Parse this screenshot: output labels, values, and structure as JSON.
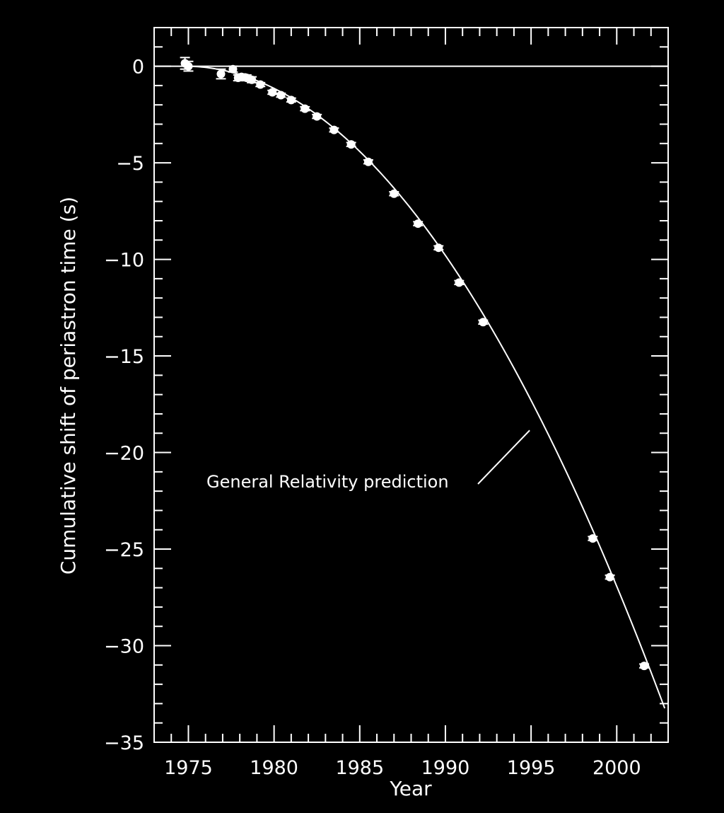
{
  "chart_data": {
    "type": "scatter",
    "title": "",
    "xlabel": "Year",
    "ylabel": "Cumulative shift of periastron time (s)",
    "xlim": [
      1973,
      2003
    ],
    "ylim": [
      -35,
      2
    ],
    "x_ticks": [
      1975,
      1980,
      1985,
      1990,
      1995,
      2000
    ],
    "x_tick_labels": [
      "1975",
      "1980",
      "1985",
      "1990",
      "1995",
      "2000"
    ],
    "y_ticks": [
      0,
      -5,
      -10,
      -15,
      -20,
      -25,
      -30,
      -35
    ],
    "y_tick_labels": [
      "0",
      "−5",
      "−10",
      "−15",
      "−20",
      "−25",
      "−30",
      "−35"
    ],
    "x_minor_step": 1,
    "y_minor_step": 1,
    "grid": false,
    "zero_line": 0,
    "background": "#000000",
    "foreground": "#ffffff",
    "series": [
      {
        "type": "scatter",
        "x": [
          1974.8,
          1975.0,
          1976.9,
          1977.6,
          1977.9,
          1978.1,
          1978.4,
          1978.7,
          1979.2,
          1979.9,
          1980.4,
          1981.0,
          1981.8,
          1982.5,
          1983.5,
          1984.5,
          1985.5,
          1987.0,
          1988.4,
          1989.6,
          1990.8,
          1992.2,
          1998.6,
          1999.6,
          2001.6
        ],
        "y": [
          0.15,
          0.0,
          -0.4,
          -0.15,
          -0.6,
          -0.55,
          -0.6,
          -0.7,
          -0.95,
          -1.35,
          -1.5,
          -1.75,
          -2.2,
          -2.6,
          -3.3,
          -4.05,
          -4.95,
          -6.6,
          -8.15,
          -9.4,
          -11.2,
          -13.25,
          -24.45,
          -26.45,
          -31.05
        ],
        "yerr": [
          0.3,
          0.25,
          0.25,
          0.15,
          0.15,
          0.15,
          0.15,
          0.15,
          0.1,
          0.1,
          0.1,
          0.1,
          0.1,
          0.1,
          0.1,
          0.1,
          0.1,
          0.1,
          0.1,
          0.1,
          0.1,
          0.1,
          0.1,
          0.1,
          0.1
        ]
      },
      {
        "type": "line",
        "model": "quadratic",
        "x_start": 1974.8,
        "x_end": 2002.8,
        "coefficient": -0.0424
      }
    ],
    "annotations": [
      {
        "text": "General Relativity prediction",
        "points_to": [
          1995.0,
          -19.0
        ]
      }
    ]
  }
}
